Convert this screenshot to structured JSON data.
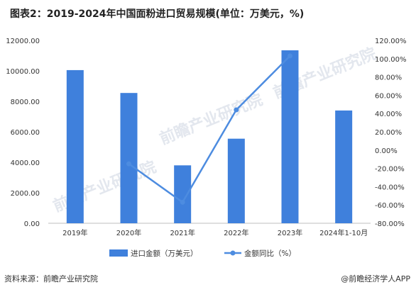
{
  "title": "图表2：2019-2024年中国面粉进口贸易规模(单位：万美元，%)",
  "source": "资料来源：前瞻产业研究院",
  "credit": "@前瞻经济学人APP",
  "watermark": "前瞻产业研究院",
  "colors": {
    "bar": "#3f80dc",
    "line": "#4d8ce0",
    "text": "#333333"
  },
  "chart_data": {
    "type": "bar",
    "categories": [
      "2019年",
      "2020年",
      "2021年",
      "2022年",
      "2023年",
      "2024年1-10月"
    ],
    "series": [
      {
        "name": "进口金额（万美元）",
        "type": "bar",
        "axis": "left",
        "values": [
          10050,
          8550,
          3800,
          5550,
          11350,
          7400
        ]
      },
      {
        "name": "金额同比（%）",
        "type": "line",
        "axis": "right",
        "values": [
          null,
          -15,
          -57,
          44,
          103,
          null
        ]
      }
    ],
    "left_axis": {
      "min": 0,
      "max": 12000,
      "ticks": [
        "0.00",
        "2000.00",
        "4000.00",
        "6000.00",
        "8000.00",
        "10000.00",
        "12000.00"
      ]
    },
    "right_axis": {
      "min": -80,
      "max": 120,
      "ticks": [
        "-80.00%",
        "-60.00%",
        "-40.00%",
        "-20.00%",
        "0.00%",
        "20.00%",
        "40.00%",
        "60.00%",
        "80.00%",
        "100.00%",
        "120.00%"
      ]
    },
    "grid": false,
    "legend": "bottom"
  }
}
